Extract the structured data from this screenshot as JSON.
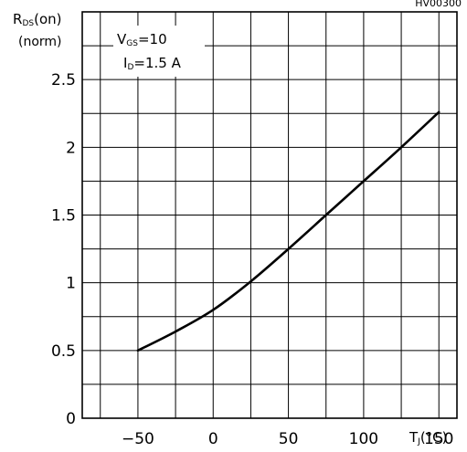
{
  "corner_code": "HV00300",
  "chart_data": {
    "type": "line",
    "title": "",
    "ylabel": {
      "main": "R",
      "sub": "DS",
      "rest": "(on)",
      "line2": "(norm)"
    },
    "xlabel": {
      "main": "T",
      "sub": "J",
      "rest": "(°C)"
    },
    "xlim": [
      -87,
      162
    ],
    "ylim": [
      0,
      3
    ],
    "x_ticks": [
      -50,
      0,
      50,
      100,
      150
    ],
    "x_tick_labels": [
      "−50",
      "0",
      "50",
      "100",
      "150"
    ],
    "y_ticks": [
      0,
      0.5,
      1,
      1.5,
      2,
      2.5
    ],
    "y_tick_labels": [
      "0",
      "0.5",
      "1",
      "1.5",
      "2",
      "2.5"
    ],
    "grid": true,
    "legend": {
      "line1": {
        "main": "V",
        "sub": "GS",
        "rest": "=10"
      },
      "line2": {
        "main": "I",
        "sub": "D",
        "rest": "=1.5 A"
      }
    },
    "series": [
      {
        "x": [
          -50,
          -25,
          0,
          25,
          50,
          75,
          100,
          125,
          150
        ],
        "y": [
          0.5,
          0.64,
          0.8,
          1.01,
          1.25,
          1.5,
          1.75,
          2.0,
          2.26
        ]
      }
    ]
  }
}
